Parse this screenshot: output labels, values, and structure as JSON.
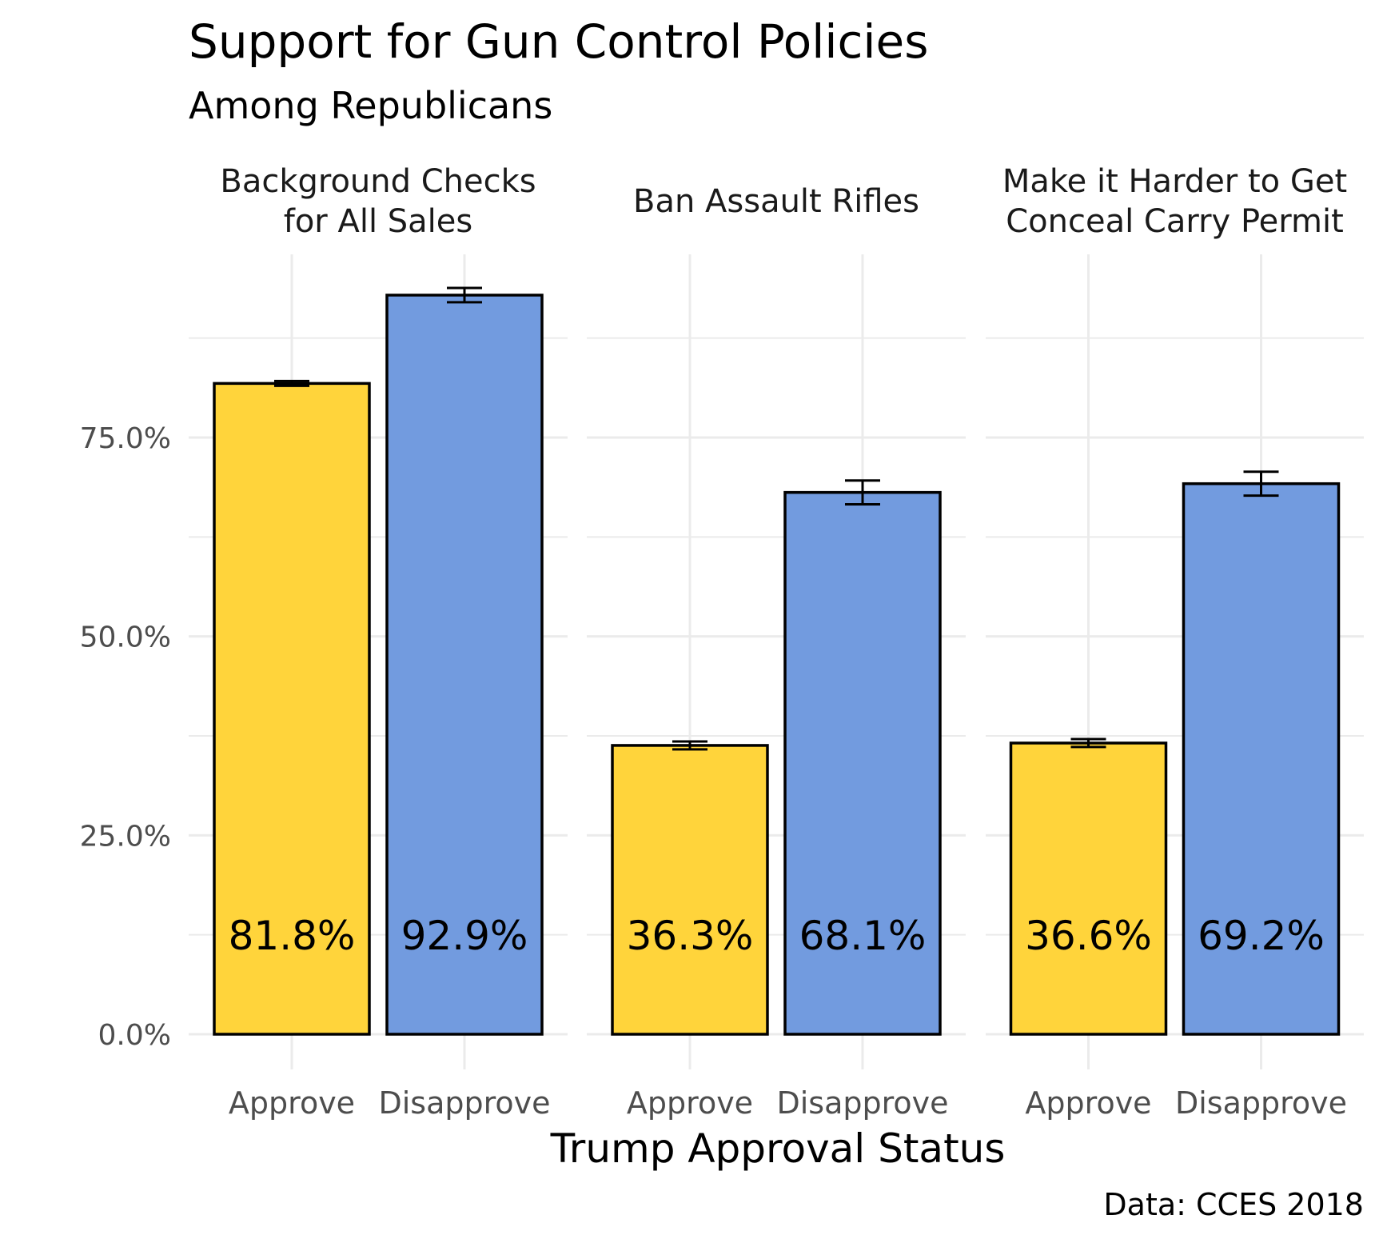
{
  "chart_data": {
    "type": "bar",
    "title": "Support for Gun Control Policies",
    "subtitle": "Among Republicans",
    "xlabel": "Trump Approval Status",
    "ylabel": "",
    "caption": "Data: CCES 2018",
    "ylim": [
      0,
      0.99
    ],
    "yticks": [
      0,
      0.25,
      0.5,
      0.75
    ],
    "ytick_labels": [
      "0.0%",
      "25.0%",
      "50.0%",
      "75.0%"
    ],
    "grid": true,
    "categories": [
      "Approve",
      "Disapprove"
    ],
    "colors": {
      "Approve": "#ffd43b",
      "Disapprove": "#729bdf"
    },
    "facets": [
      {
        "title_lines": [
          "Background Checks",
          "for All Sales"
        ],
        "values": [
          0.818,
          0.929
        ],
        "errors": [
          0.003,
          0.009
        ],
        "labels": [
          "81.8%",
          "92.9%"
        ]
      },
      {
        "title_lines": [
          "Ban Assault Rifles"
        ],
        "values": [
          0.363,
          0.681
        ],
        "errors": [
          0.005,
          0.015
        ],
        "labels": [
          "36.3%",
          "68.1%"
        ]
      },
      {
        "title_lines": [
          "Make it Harder to Get",
          "Conceal Carry Permit"
        ],
        "values": [
          0.366,
          0.692
        ],
        "errors": [
          0.005,
          0.015
        ],
        "labels": [
          "36.6%",
          "69.2%"
        ]
      }
    ]
  }
}
